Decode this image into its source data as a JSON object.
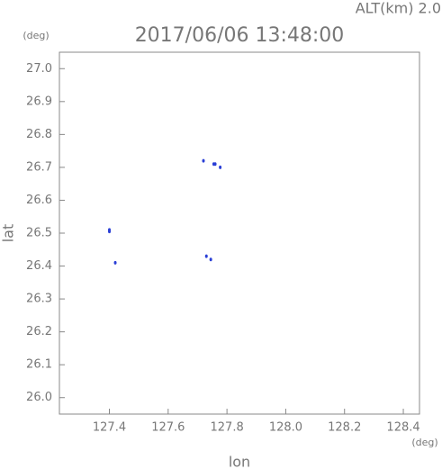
{
  "chart_data": {
    "type": "scatter",
    "title": "2017/06/06 13:48:00",
    "subtitle": "ALT(km) 2.0",
    "x_label": "lon",
    "y_label": "lat",
    "x_unit": "(deg)",
    "y_unit": "(deg)",
    "xlim": [
      127.23,
      128.455
    ],
    "ylim": [
      25.95,
      27.05
    ],
    "xticks": [
      127.4,
      127.6,
      127.8,
      {
        "value": 128,
        "label": "128.0"
      },
      128.2,
      128.4
    ],
    "yticks": [
      {
        "value": 26,
        "label": "26.0"
      },
      26.1,
      26.2,
      26.3,
      26.4,
      26.5,
      26.6,
      26.7,
      26.8,
      26.9,
      {
        "value": 27,
        "label": "27.0"
      }
    ],
    "series": [
      {
        "color": "#2a3fd6",
        "x": [
          127.4,
          127.4,
          127.42,
          127.72,
          127.755,
          127.76,
          127.777,
          127.73,
          127.745
        ],
        "values": [
          26.51,
          26.505,
          26.41,
          26.72,
          26.71,
          26.71,
          26.7,
          26.43,
          26.42
        ]
      }
    ]
  }
}
